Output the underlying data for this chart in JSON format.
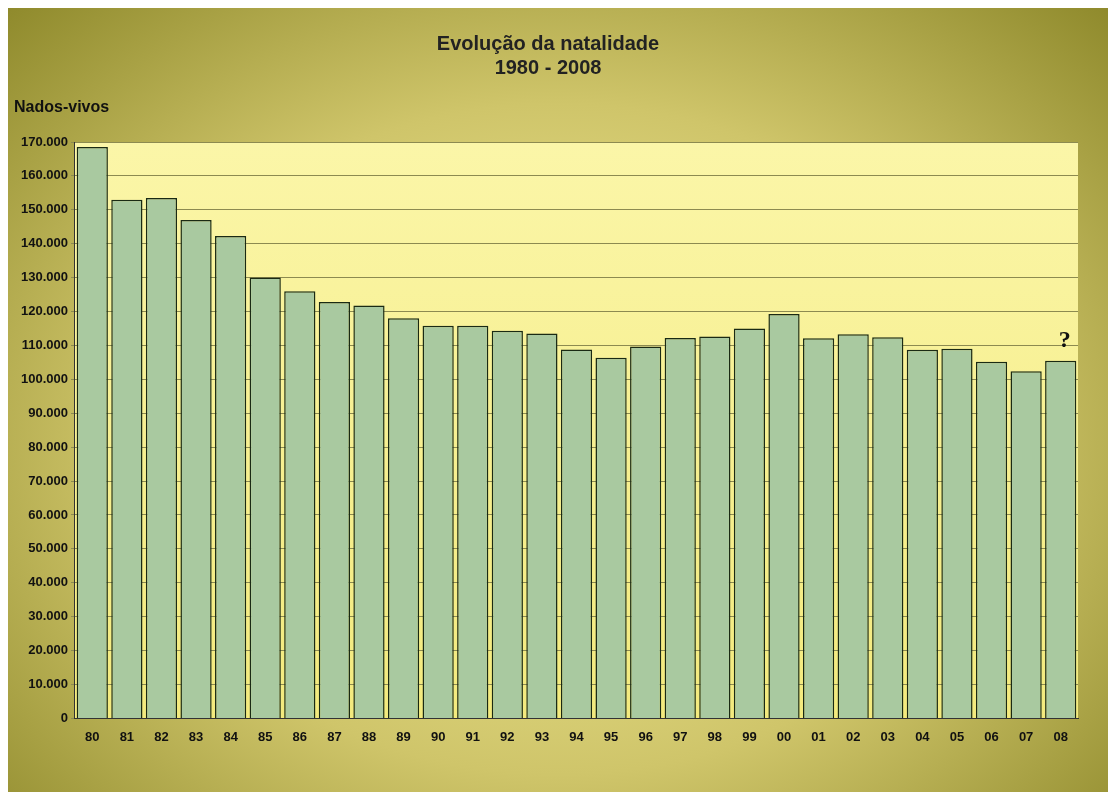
{
  "chart_data": {
    "type": "bar",
    "title": "Evolução da natalidade",
    "subtitle": "1980 - 2008",
    "ylabel": "Nados-vivos",
    "categories": [
      "80",
      "81",
      "82",
      "83",
      "84",
      "85",
      "86",
      "87",
      "88",
      "89",
      "90",
      "91",
      "92",
      "93",
      "94",
      "95",
      "96",
      "97",
      "98",
      "99",
      "00",
      "01",
      "02",
      "03",
      "04",
      "05",
      "06",
      "07",
      "08"
    ],
    "values": [
      168500,
      153000,
      153500,
      147000,
      142300,
      130000,
      126000,
      122800,
      121800,
      118000,
      115800,
      115800,
      114300,
      113500,
      108800,
      106400,
      109700,
      112200,
      112600,
      115000,
      119300,
      112100,
      113300,
      112400,
      108700,
      109000,
      105200,
      102400,
      105500
    ],
    "color": "#a9c9a0",
    "ylim": [
      0,
      170000
    ],
    "yticks": [
      {
        "value": 0,
        "label": "0"
      },
      {
        "value": 10000,
        "label": "10.000"
      },
      {
        "value": 20000,
        "label": "20.000"
      },
      {
        "value": 30000,
        "label": "30.000"
      },
      {
        "value": 40000,
        "label": "40.000"
      },
      {
        "value": 50000,
        "label": "50.000"
      },
      {
        "value": 60000,
        "label": "60.000"
      },
      {
        "value": 70000,
        "label": "70.000"
      },
      {
        "value": 80000,
        "label": "80.000"
      },
      {
        "value": 90000,
        "label": "90.000"
      },
      {
        "value": 100000,
        "label": "100.000"
      },
      {
        "value": 110000,
        "label": "110.000"
      },
      {
        "value": 120000,
        "label": "120.000"
      },
      {
        "value": 130000,
        "label": "130.000"
      },
      {
        "value": 140000,
        "label": "140.000"
      },
      {
        "value": 150000,
        "label": "150.000"
      },
      {
        "value": 160000,
        "label": "160.000"
      },
      {
        "value": 170000,
        "label": "170.000"
      }
    ],
    "grid": "y",
    "legend": false,
    "annotations": [
      {
        "text": "?",
        "x": "08",
        "y": 105500
      }
    ]
  }
}
